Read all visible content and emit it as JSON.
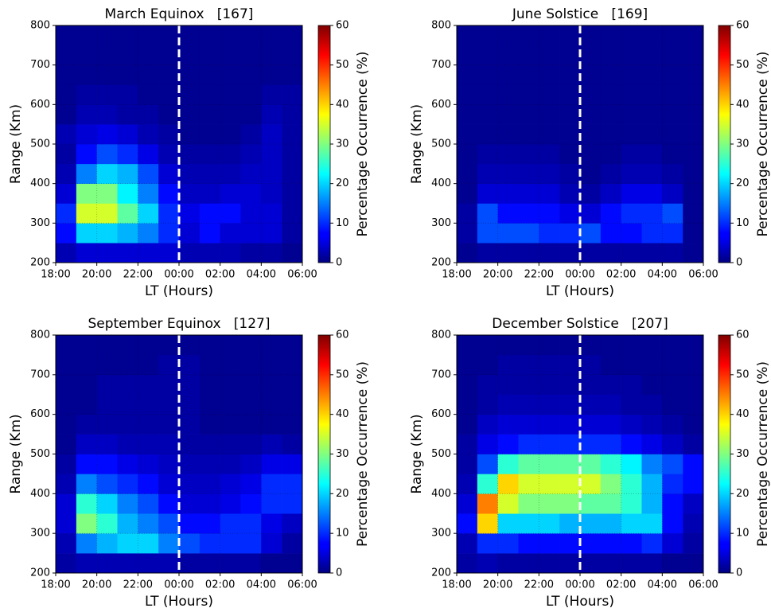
{
  "chart_data": [
    {
      "type": "heatmap",
      "title": "March Equinox   [167]",
      "xlabel": "LT (Hours)",
      "ylabel": "Range (Km)",
      "colorbar_label": "Percentage Occurrence (%)",
      "colormap": "jet",
      "grid": true,
      "vline": {
        "x": 24,
        "color": "#ffffff"
      },
      "x_bins": [
        18,
        19,
        20,
        21,
        22,
        23,
        24,
        25,
        26,
        27,
        28,
        29,
        30
      ],
      "y_bins": [
        200,
        250,
        300,
        350,
        400,
        450,
        500,
        550,
        600,
        650,
        700,
        750,
        800
      ],
      "z": [
        [
          3,
          5,
          5,
          5,
          5,
          5,
          3,
          3,
          3,
          2,
          2,
          1
        ],
        [
          8,
          20,
          20,
          18,
          15,
          10,
          5,
          8,
          5,
          5,
          5,
          2
        ],
        [
          10,
          35,
          35,
          28,
          20,
          10,
          6,
          8,
          8,
          5,
          5,
          2
        ],
        [
          5,
          30,
          30,
          22,
          15,
          8,
          4,
          4,
          5,
          5,
          4,
          2
        ],
        [
          3,
          15,
          20,
          18,
          12,
          5,
          3,
          3,
          3,
          4,
          4,
          2
        ],
        [
          2,
          8,
          12,
          10,
          6,
          3,
          2,
          2,
          2,
          3,
          4,
          2
        ],
        [
          3,
          5,
          6,
          5,
          3,
          2,
          1,
          1,
          1,
          2,
          4,
          2
        ],
        [
          1,
          3,
          3,
          2,
          2,
          1,
          1,
          1,
          1,
          1,
          3,
          2
        ],
        [
          1,
          2,
          2,
          2,
          1,
          1,
          1,
          1,
          1,
          1,
          2,
          2
        ],
        [
          1,
          1,
          1,
          1,
          1,
          1,
          1,
          1,
          1,
          1,
          1,
          1
        ],
        [
          1,
          1,
          1,
          1,
          1,
          1,
          1,
          1,
          1,
          1,
          1,
          1
        ],
        [
          1,
          1,
          1,
          1,
          1,
          1,
          1,
          1,
          1,
          1,
          1,
          1
        ]
      ],
      "xlim": [
        18,
        30
      ],
      "ylim": [
        200,
        800
      ],
      "clim": [
        0,
        60
      ],
      "xticks": [
        {
          "value": 18,
          "label": "18:00"
        },
        {
          "value": 20,
          "label": "20:00"
        },
        {
          "value": 22,
          "label": "22:00"
        },
        {
          "value": 24,
          "label": "00:00"
        },
        {
          "value": 26,
          "label": "02:00"
        },
        {
          "value": 28,
          "label": "04:00"
        },
        {
          "value": 30,
          "label": "06:00"
        }
      ],
      "yticks": [
        200,
        300,
        400,
        500,
        600,
        700,
        800
      ],
      "cticks": [
        0,
        10,
        20,
        30,
        40,
        50,
        60
      ]
    },
    {
      "type": "heatmap",
      "title": "June Solstice   [169]",
      "xlabel": "LT (Hours)",
      "ylabel": "Range (Km)",
      "colorbar_label": "Percentage Occurrence (%)",
      "colormap": "jet",
      "grid": true,
      "vline": {
        "x": 24,
        "color": "#ffffff"
      },
      "x_bins": [
        18,
        19,
        20,
        21,
        22,
        23,
        24,
        25,
        26,
        27,
        28,
        29,
        30
      ],
      "y_bins": [
        200,
        250,
        300,
        350,
        400,
        450,
        500,
        550,
        600,
        650,
        700,
        750,
        800
      ],
      "z": [
        [
          1,
          2,
          2,
          2,
          2,
          2,
          2,
          2,
          2,
          2,
          2,
          1
        ],
        [
          2,
          12,
          12,
          12,
          10,
          10,
          12,
          8,
          8,
          10,
          10,
          1
        ],
        [
          2,
          12,
          8,
          8,
          8,
          6,
          5,
          8,
          10,
          10,
          12,
          1
        ],
        [
          1,
          5,
          5,
          5,
          5,
          3,
          2,
          4,
          6,
          6,
          4,
          1
        ],
        [
          1,
          3,
          3,
          3,
          3,
          2,
          1,
          2,
          3,
          3,
          2,
          1
        ],
        [
          1,
          2,
          2,
          2,
          2,
          1,
          1,
          1,
          2,
          2,
          1,
          1
        ],
        [
          1,
          1,
          1,
          1,
          1,
          1,
          1,
          1,
          1,
          1,
          1,
          1
        ],
        [
          1,
          1,
          1,
          1,
          1,
          1,
          1,
          1,
          1,
          1,
          1,
          1
        ],
        [
          1,
          1,
          1,
          1,
          1,
          1,
          1,
          1,
          1,
          1,
          1,
          1
        ],
        [
          1,
          1,
          1,
          1,
          1,
          1,
          1,
          1,
          1,
          1,
          1,
          1
        ],
        [
          1,
          1,
          1,
          1,
          1,
          1,
          1,
          1,
          1,
          1,
          1,
          1
        ],
        [
          1,
          1,
          1,
          1,
          1,
          1,
          1,
          1,
          1,
          1,
          1,
          1
        ]
      ],
      "xlim": [
        18,
        30
      ],
      "ylim": [
        200,
        800
      ],
      "clim": [
        0,
        60
      ],
      "xticks": [
        {
          "value": 18,
          "label": "18:00"
        },
        {
          "value": 20,
          "label": "20:00"
        },
        {
          "value": 22,
          "label": "22:00"
        },
        {
          "value": 24,
          "label": "00:00"
        },
        {
          "value": 26,
          "label": "02:00"
        },
        {
          "value": 28,
          "label": "04:00"
        },
        {
          "value": 30,
          "label": "06:00"
        }
      ],
      "yticks": [
        200,
        300,
        400,
        500,
        600,
        700,
        800
      ],
      "cticks": [
        0,
        10,
        20,
        30,
        40,
        50,
        60
      ]
    },
    {
      "type": "heatmap",
      "title": "September Equinox   [127]",
      "xlabel": "LT (Hours)",
      "ylabel": "Range (Km)",
      "colorbar_label": "Percentage Occurrence (%)",
      "colormap": "jet",
      "grid": true,
      "vline": {
        "x": 24,
        "color": "#ffffff"
      },
      "x_bins": [
        18,
        19,
        20,
        21,
        22,
        23,
        24,
        25,
        26,
        27,
        28,
        29,
        30
      ],
      "y_bins": [
        200,
        250,
        300,
        350,
        400,
        450,
        500,
        550,
        600,
        650,
        700,
        750,
        800
      ],
      "z": [
        [
          2,
          3,
          3,
          3,
          3,
          3,
          2,
          2,
          2,
          2,
          1,
          1
        ],
        [
          3,
          15,
          18,
          20,
          20,
          15,
          12,
          10,
          10,
          10,
          5,
          2
        ],
        [
          5,
          30,
          25,
          18,
          15,
          12,
          8,
          8,
          10,
          10,
          6,
          4
        ],
        [
          5,
          25,
          20,
          15,
          12,
          8,
          5,
          5,
          6,
          8,
          10,
          10
        ],
        [
          3,
          15,
          12,
          10,
          8,
          5,
          4,
          4,
          5,
          6,
          10,
          10
        ],
        [
          2,
          8,
          8,
          6,
          5,
          4,
          3,
          3,
          3,
          4,
          6,
          6
        ],
        [
          1,
          4,
          4,
          3,
          3,
          3,
          2,
          2,
          2,
          2,
          3,
          2
        ],
        [
          1,
          2,
          2,
          2,
          2,
          2,
          2,
          1,
          1,
          1,
          1,
          1
        ],
        [
          1,
          1,
          2,
          2,
          2,
          2,
          2,
          1,
          1,
          1,
          1,
          1
        ],
        [
          1,
          1,
          2,
          2,
          2,
          2,
          2,
          1,
          1,
          1,
          1,
          1
        ],
        [
          1,
          1,
          1,
          1,
          1,
          2,
          2,
          1,
          1,
          1,
          1,
          1
        ],
        [
          1,
          1,
          1,
          1,
          1,
          1,
          1,
          1,
          1,
          1,
          1,
          1
        ]
      ],
      "xlim": [
        18,
        30
      ],
      "ylim": [
        200,
        800
      ],
      "clim": [
        0,
        60
      ],
      "xticks": [
        {
          "value": 18,
          "label": "18:00"
        },
        {
          "value": 20,
          "label": "20:00"
        },
        {
          "value": 22,
          "label": "22:00"
        },
        {
          "value": 24,
          "label": "00:00"
        },
        {
          "value": 26,
          "label": "02:00"
        },
        {
          "value": 28,
          "label": "04:00"
        },
        {
          "value": 30,
          "label": "06:00"
        }
      ],
      "yticks": [
        200,
        300,
        400,
        500,
        600,
        700,
        800
      ],
      "cticks": [
        0,
        10,
        20,
        30,
        40,
        50,
        60
      ]
    },
    {
      "type": "heatmap",
      "title": "December Solstice   [207]",
      "xlabel": "LT (Hours)",
      "ylabel": "Range (Km)",
      "colorbar_label": "Percentage Occurrence (%)",
      "colormap": "jet",
      "grid": true,
      "vline": {
        "x": 24,
        "color": "#ffffff"
      },
      "x_bins": [
        18,
        19,
        20,
        21,
        22,
        23,
        24,
        25,
        26,
        27,
        28,
        29,
        30
      ],
      "y_bins": [
        200,
        250,
        300,
        350,
        400,
        450,
        500,
        550,
        600,
        650,
        700,
        750,
        800
      ],
      "z": [
        [
          2,
          3,
          2,
          2,
          2,
          2,
          2,
          2,
          2,
          2,
          1,
          1
        ],
        [
          3,
          10,
          10,
          8,
          8,
          8,
          8,
          8,
          8,
          10,
          5,
          2
        ],
        [
          8,
          40,
          20,
          20,
          20,
          18,
          18,
          18,
          20,
          20,
          8,
          3
        ],
        [
          5,
          45,
          35,
          30,
          30,
          30,
          28,
          28,
          25,
          18,
          8,
          4
        ],
        [
          3,
          25,
          40,
          35,
          35,
          35,
          35,
          30,
          25,
          18,
          10,
          8
        ],
        [
          2,
          12,
          25,
          28,
          28,
          28,
          28,
          25,
          22,
          15,
          12,
          8
        ],
        [
          2,
          6,
          8,
          10,
          10,
          10,
          10,
          10,
          8,
          6,
          4,
          2
        ],
        [
          1,
          4,
          5,
          5,
          5,
          5,
          5,
          5,
          4,
          3,
          2,
          1
        ],
        [
          1,
          2,
          3,
          3,
          3,
          3,
          3,
          3,
          2,
          2,
          1,
          1
        ],
        [
          1,
          2,
          2,
          2,
          2,
          2,
          2,
          2,
          2,
          1,
          1,
          1
        ],
        [
          1,
          1,
          2,
          2,
          2,
          2,
          2,
          1,
          1,
          1,
          1,
          1
        ],
        [
          1,
          1,
          1,
          1,
          1,
          1,
          1,
          1,
          1,
          1,
          1,
          1
        ]
      ],
      "xlim": [
        18,
        30
      ],
      "ylim": [
        200,
        800
      ],
      "clim": [
        0,
        60
      ],
      "xticks": [
        {
          "value": 18,
          "label": "18:00"
        },
        {
          "value": 20,
          "label": "20:00"
        },
        {
          "value": 22,
          "label": "22:00"
        },
        {
          "value": 24,
          "label": "00:00"
        },
        {
          "value": 26,
          "label": "02:00"
        },
        {
          "value": 28,
          "label": "04:00"
        },
        {
          "value": 30,
          "label": "06:00"
        }
      ],
      "yticks": [
        200,
        300,
        400,
        500,
        600,
        700,
        800
      ],
      "cticks": [
        0,
        10,
        20,
        30,
        40,
        50,
        60
      ]
    }
  ]
}
